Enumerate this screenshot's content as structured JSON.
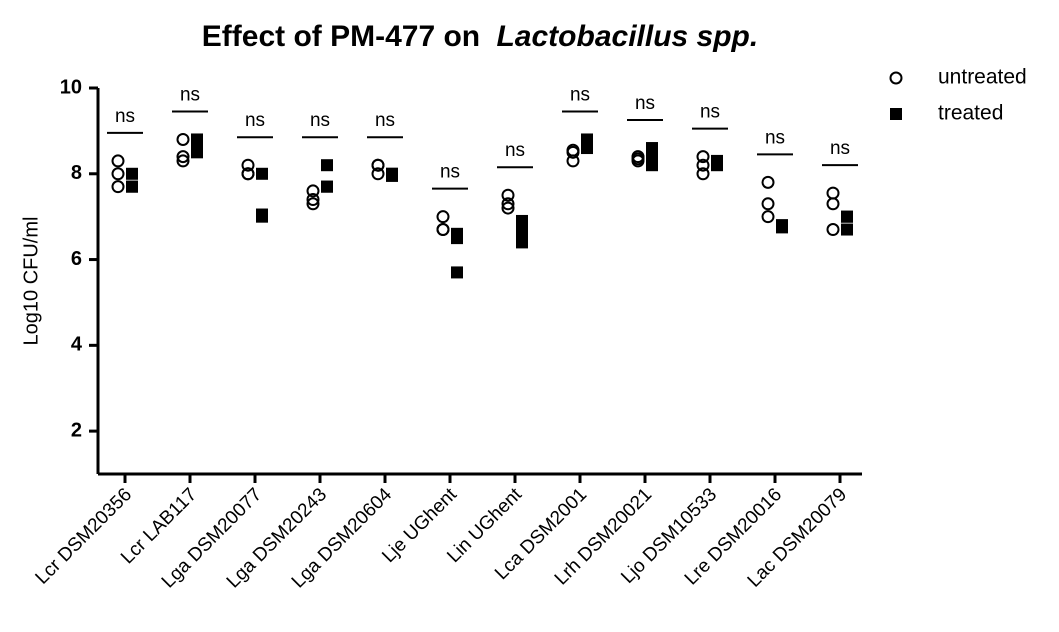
{
  "chart_data": {
    "type": "dot",
    "title_parts": [
      "Effect of PM-477 on",
      "Lactobacillus spp."
    ],
    "ylabel": "Log10 CFU/ml",
    "categories": [
      "Lcr DSM20356",
      "Lcr LAB117",
      "Lga DSM20077",
      "Lga DSM20243",
      "Lga DSM20604",
      "Lje UGhent",
      "Lin UGhent",
      "Lca DSM2001",
      "Lrh DSM20021",
      "Ljo DSM10533",
      "Lre DSM20016",
      "Lac DSM20079"
    ],
    "series": [
      {
        "name": "untreated",
        "color": "#000000",
        "marker": "open-circle",
        "values": [
          [
            8.3,
            8.0,
            7.7
          ],
          [
            8.8,
            8.4,
            8.3
          ],
          [
            8.2,
            8.0,
            8.0
          ],
          [
            7.6,
            7.4,
            7.3
          ],
          [
            8.2,
            8.2,
            8.0
          ],
          [
            7.0,
            6.7,
            6.7
          ],
          [
            7.5,
            7.3,
            7.2
          ],
          [
            8.55,
            8.5,
            8.3
          ],
          [
            8.4,
            8.35,
            8.3
          ],
          [
            8.4,
            8.2,
            8.0
          ],
          [
            7.8,
            7.3,
            7.0
          ],
          [
            7.55,
            7.3,
            6.7
          ]
        ]
      },
      {
        "name": "treated",
        "color": "#000000",
        "marker": "filled-square",
        "values": [
          [
            8.0,
            7.7,
            7.7
          ],
          [
            8.8,
            8.7,
            8.5
          ],
          [
            8.0,
            7.05,
            7.0
          ],
          [
            8.2,
            7.7,
            7.7
          ],
          [
            8.0,
            8.0,
            7.95
          ],
          [
            6.6,
            6.5,
            5.7
          ],
          [
            6.9,
            6.65,
            6.4
          ],
          [
            8.8,
            8.7,
            8.6
          ],
          [
            8.6,
            8.4,
            8.2
          ],
          [
            8.3,
            8.25,
            8.2
          ],
          [
            6.8,
            6.8,
            6.75
          ],
          [
            7.0,
            7.0,
            6.7
          ]
        ]
      }
    ],
    "annotations": [
      "ns",
      "ns",
      "ns",
      "ns",
      "ns",
      "ns",
      "ns",
      "ns",
      "ns",
      "ns",
      "ns",
      "ns"
    ],
    "ylim": [
      1,
      10
    ],
    "yticks": [
      2,
      4,
      6,
      8,
      10
    ],
    "grid": false,
    "legend": "top-right"
  }
}
